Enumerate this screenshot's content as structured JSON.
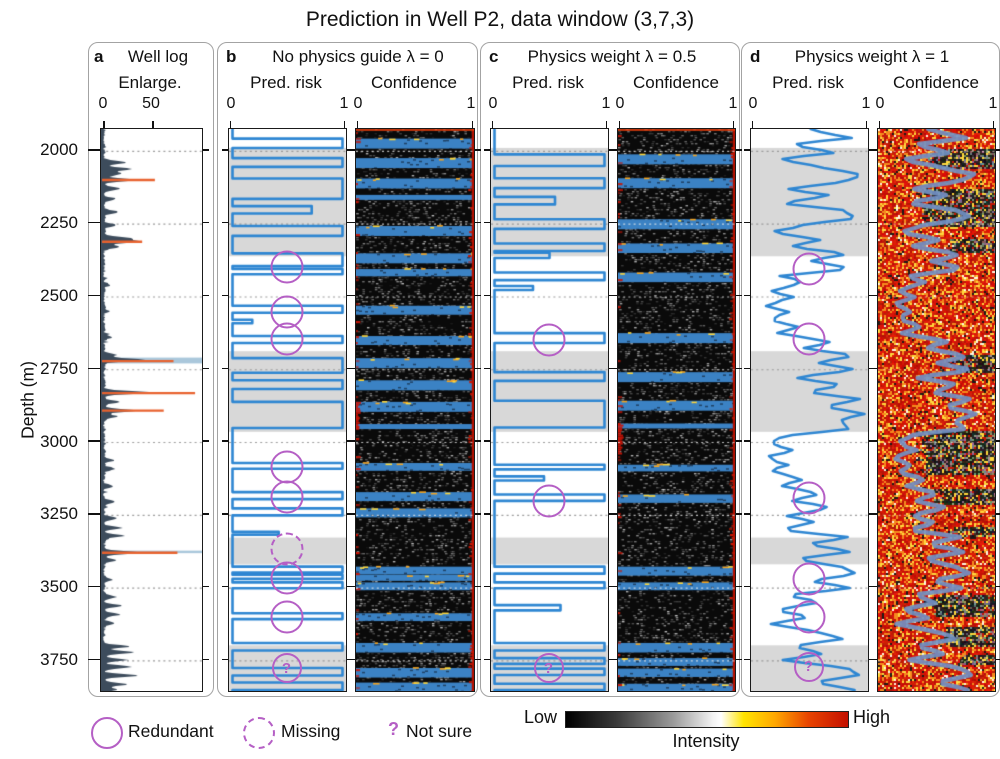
{
  "title": "Prediction in Well P2, data window (3,7,3)",
  "depth_axis": {
    "label": "Depth (m)",
    "ticks": [
      2000,
      2250,
      2500,
      2750,
      3000,
      3250,
      3500,
      3750
    ],
    "min": 1925,
    "max": 3855
  },
  "panels": {
    "a": {
      "letter": "a",
      "title": "Well log",
      "axis_label": "Enlarge.",
      "x_ticks": [
        "0",
        "50"
      ]
    },
    "b": {
      "letter": "b",
      "title": "No physics guide λ = 0",
      "col1": "Pred. risk",
      "col2": "Confidence",
      "x_ticks": [
        "0",
        "1",
        "0",
        "1"
      ]
    },
    "c": {
      "letter": "c",
      "title": "Physics weight λ = 0.5",
      "col1": "Pred. risk",
      "col2": "Confidence",
      "x_ticks": [
        "0",
        "1",
        "0",
        "1"
      ]
    },
    "d": {
      "letter": "d",
      "title": "Physics weight λ = 1",
      "col1": "Pred. risk",
      "col2": "Confidence",
      "x_ticks": [
        "0",
        "1",
        "0",
        "1"
      ]
    }
  },
  "legend": {
    "redundant": "Redundant",
    "missing": "Missing",
    "question": "?",
    "not_sure": "Not sure"
  },
  "colorbar": {
    "low": "Low",
    "high": "High",
    "label": "Intensity",
    "stops": [
      [
        "#000000",
        0
      ],
      [
        "#3a3a3a",
        0.18
      ],
      [
        "#9a9a9a",
        0.38
      ],
      [
        "#f2f2f2",
        0.52
      ],
      [
        "#ffffff",
        0.55
      ],
      [
        "#ffe400",
        0.63
      ],
      [
        "#ffa800",
        0.74
      ],
      [
        "#e84400",
        0.86
      ],
      [
        "#c41000",
        1
      ]
    ]
  },
  "colors": {
    "risk_curve": "#2e86d2",
    "well_log": "#3d4c5c",
    "log_highlight": "#e8622e",
    "marker": "#b55fc5",
    "band_gray": "#d8d8d8",
    "grid": "#9a9a9a",
    "heat_blue": "#3b82c4",
    "heat_red": "#c41504",
    "heat_orange": "#f5a623",
    "heat_yellow": "#ffd83d",
    "hot_curve": "#7291c4"
  },
  "chart_data": {
    "type": "multi-panel well-log prediction figure",
    "depth_range": [
      1925,
      3855
    ],
    "gray_bands": [
      [
        1990,
        2362
      ],
      [
        2688,
        2965
      ],
      [
        3328,
        3420
      ],
      [
        3698,
        3855
      ]
    ],
    "well_log": {
      "x_range": [
        0,
        100
      ],
      "x_tick_values": [
        0,
        50
      ],
      "noise_seed": 7,
      "spikes": [
        [
          2040,
          22
        ],
        [
          2062,
          28
        ],
        [
          2078,
          18
        ],
        [
          2100,
          30
        ],
        [
          2130,
          16
        ],
        [
          2165,
          12
        ],
        [
          2210,
          14
        ],
        [
          2255,
          12
        ],
        [
          2300,
          26
        ],
        [
          2312,
          34
        ],
        [
          2330,
          15
        ],
        [
          2460,
          6
        ],
        [
          2550,
          4
        ],
        [
          2640,
          8
        ],
        [
          2700,
          12
        ],
        [
          2718,
          42
        ],
        [
          2830,
          48
        ],
        [
          2862,
          16
        ],
        [
          2892,
          32
        ],
        [
          2912,
          14
        ],
        [
          3062,
          10
        ],
        [
          3092,
          12
        ],
        [
          3152,
          8
        ],
        [
          3205,
          10
        ],
        [
          3262,
          14
        ],
        [
          3295,
          18
        ],
        [
          3322,
          20
        ],
        [
          3380,
          36
        ],
        [
          3405,
          12
        ],
        [
          3472,
          8
        ],
        [
          3532,
          12
        ],
        [
          3562,
          18
        ],
        [
          3592,
          14
        ],
        [
          3622,
          10
        ],
        [
          3702,
          26
        ],
        [
          3722,
          30
        ],
        [
          3748,
          20
        ],
        [
          3772,
          28
        ],
        [
          3802,
          34
        ],
        [
          3832,
          24
        ],
        [
          3850,
          14
        ]
      ],
      "highlight_spikes": [
        [
          2100,
          55
        ],
        [
          2312,
          42
        ],
        [
          2722,
          74
        ],
        [
          2832,
          96
        ],
        [
          2892,
          64
        ],
        [
          3380,
          78
        ]
      ],
      "highlight_bands": [
        [
          2710,
          2730
        ],
        [
          3373,
          3381
        ]
      ]
    },
    "risk_b": {
      "type": "step",
      "intervals": [
        [
          1958,
          1990
        ],
        [
          2025,
          2055
        ],
        [
          2095,
          2165
        ],
        [
          2190,
          2215,
          0.72
        ],
        [
          2258,
          2292
        ],
        [
          2352,
          2396
        ],
        [
          2406,
          2424
        ],
        [
          2532,
          2556
        ],
        [
          2580,
          2592,
          0.18
        ],
        [
          2636,
          2660
        ],
        [
          2712,
          2762
        ],
        [
          2788,
          2818
        ],
        [
          2862,
          2952
        ],
        [
          3072,
          3092
        ],
        [
          3172,
          3196
        ],
        [
          3228,
          3252
        ],
        [
          3308,
          3318,
          0.42
        ],
        [
          3428,
          3448
        ],
        [
          3456,
          3470
        ],
        [
          3482,
          3502
        ],
        [
          3588,
          3608
        ],
        [
          3690,
          3716
        ],
        [
          3776,
          3802
        ],
        [
          3826,
          3852
        ]
      ]
    },
    "risk_c": {
      "type": "step",
      "intervals": [
        [
          2012,
          2052
        ],
        [
          2094,
          2128
        ],
        [
          2158,
          2184,
          0.55
        ],
        [
          2235,
          2268
        ],
        [
          2318,
          2344
        ],
        [
          2350,
          2368,
          0.5
        ],
        [
          2418,
          2444
        ],
        [
          2464,
          2478,
          0.35
        ],
        [
          2626,
          2660
        ],
        [
          2760,
          2790
        ],
        [
          2858,
          2950
        ],
        [
          3078,
          3094
        ],
        [
          3118,
          3132,
          0.45
        ],
        [
          3180,
          3202
        ],
        [
          3428,
          3452
        ],
        [
          3482,
          3502
        ],
        [
          3560,
          3578,
          0.6
        ],
        [
          3690,
          3716
        ],
        [
          3742,
          3762
        ],
        [
          3778,
          3800
        ],
        [
          3830,
          3852
        ]
      ]
    },
    "risk_d": {
      "type": "line",
      "depth_start": 1930,
      "depth_step": 24.94,
      "jitter_seed": 5,
      "values": [
        0.5,
        0.9,
        0.3,
        0.75,
        0.2,
        0.6,
        0.95,
        0.85,
        0.3,
        0.7,
        0.25,
        0.8,
        0.95,
        0.45,
        0.15,
        0.6,
        0.3,
        0.85,
        0.5,
        0.9,
        0.25,
        0.45,
        0.15,
        0.35,
        0.1,
        0.3,
        0.15,
        0.4,
        0.2,
        0.7,
        0.45,
        0.9,
        0.55,
        0.95,
        0.35,
        0.8,
        0.5,
        0.95,
        0.65,
        1.0,
        0.75,
        0.9,
        0.3,
        0.15,
        0.35,
        0.1,
        0.3,
        0.15,
        0.45,
        0.25,
        0.6,
        0.35,
        0.7,
        0.3,
        0.55,
        0.25,
        0.85,
        0.45,
        0.9,
        0.4,
        0.75,
        0.95,
        0.5,
        0.85,
        0.3,
        0.6,
        0.2,
        0.5,
        0.15,
        0.55,
        0.8,
        0.35,
        0.65,
        0.25,
        0.85,
        0.95,
        0.55,
        0.9
      ]
    },
    "confidence_b": {
      "style": "dark-speckle",
      "seed": 11,
      "red_left_bands": [
        [
          2862,
          2952
        ]
      ]
    },
    "confidence_c": {
      "style": "dark-speckle",
      "seed": 23,
      "red_left_bands": [
        [
          2940,
          3040
        ]
      ]
    },
    "confidence_d": {
      "style": "hot",
      "seed": 37,
      "dark_bands": [
        [
          1990,
          2060,
          0.55
        ],
        [
          2130,
          2260,
          0.6
        ],
        [
          2300,
          2350,
          0.4
        ],
        [
          2700,
          2760,
          0.35
        ],
        [
          2960,
          3110,
          0.65
        ],
        [
          3160,
          3215,
          0.5
        ],
        [
          3290,
          3320,
          0.35
        ],
        [
          3520,
          3595,
          0.55
        ],
        [
          3630,
          3700,
          0.45
        ],
        [
          3730,
          3760,
          0.3
        ]
      ]
    },
    "markers": [
      {
        "panel": "b",
        "depth": 2404,
        "type": "redundant"
      },
      {
        "panel": "b",
        "depth": 2556,
        "type": "redundant"
      },
      {
        "panel": "b",
        "depth": 2650,
        "type": "redundant"
      },
      {
        "panel": "b",
        "depth": 3090,
        "type": "redundant"
      },
      {
        "panel": "b",
        "depth": 3192,
        "type": "redundant"
      },
      {
        "panel": "b",
        "depth": 3372,
        "type": "missing"
      },
      {
        "panel": "b",
        "depth": 3472,
        "type": "redundant"
      },
      {
        "panel": "b",
        "depth": 3606,
        "type": "redundant"
      },
      {
        "panel": "b",
        "depth": 3780,
        "type": "question"
      },
      {
        "panel": "c",
        "depth": 2652,
        "type": "redundant"
      },
      {
        "panel": "c",
        "depth": 3205,
        "type": "redundant"
      },
      {
        "panel": "c",
        "depth": 3780,
        "type": "question"
      },
      {
        "panel": "d",
        "depth": 2408,
        "type": "redundant"
      },
      {
        "panel": "d",
        "depth": 2648,
        "type": "redundant"
      },
      {
        "panel": "d",
        "depth": 3195,
        "type": "redundant"
      },
      {
        "panel": "d",
        "depth": 3475,
        "type": "redundant"
      },
      {
        "panel": "d",
        "depth": 3606,
        "type": "redundant"
      },
      {
        "panel": "d",
        "depth": 3776,
        "type": "question"
      }
    ]
  }
}
